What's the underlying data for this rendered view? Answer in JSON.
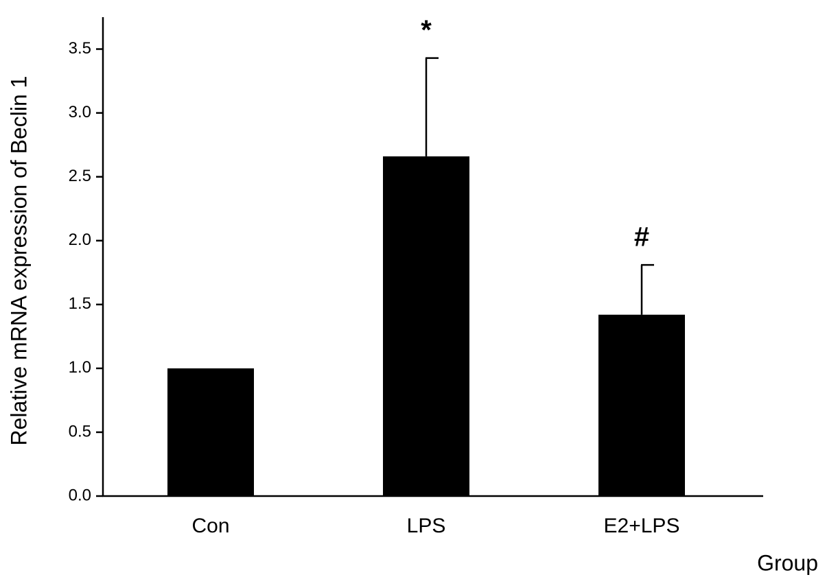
{
  "chart_data": {
    "type": "bar",
    "y_label": "Relative mRNA expression of Beclin 1",
    "x_label": "Group",
    "categories": [
      "Con",
      "LPS",
      "E2+LPS"
    ],
    "values": [
      1.0,
      2.66,
      1.42
    ],
    "errors": [
      null,
      0.77,
      0.39
    ],
    "annotations": [
      null,
      "*",
      "#"
    ],
    "color": "#000000",
    "ylim": [
      0,
      3.75
    ],
    "yticks": [
      {
        "value": 0,
        "label": "0.0"
      },
      0.5,
      {
        "value": 1,
        "label": "1.0"
      },
      1.5,
      {
        "value": 2,
        "label": "2.0"
      },
      2.5,
      {
        "value": 3,
        "label": "3.0"
      },
      3.5
    ],
    "grid": false
  }
}
